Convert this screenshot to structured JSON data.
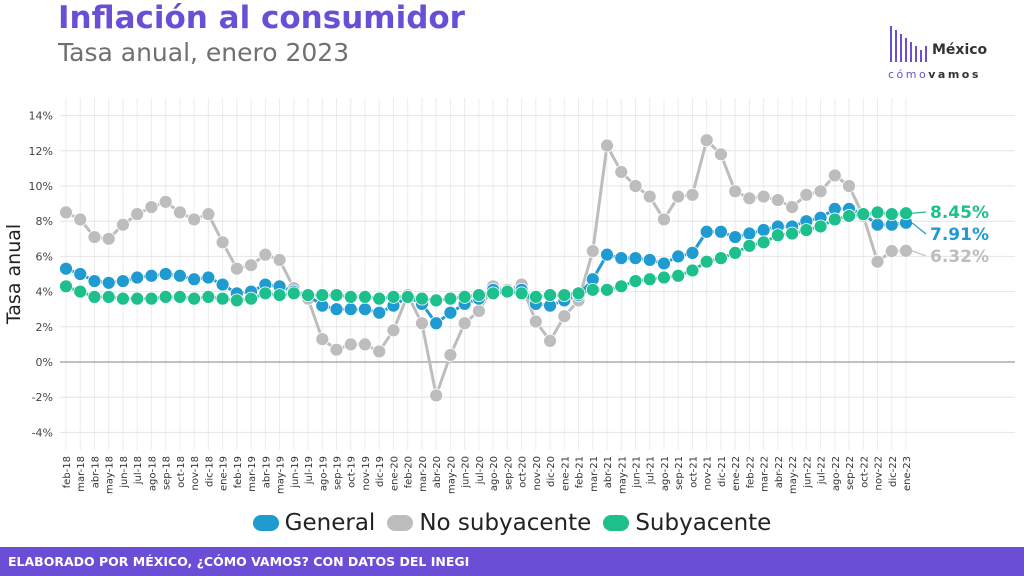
{
  "header": {
    "title": "Inflación al consumidor",
    "subtitle": "Tasa anual, enero 2023"
  },
  "logo": {
    "word": "México",
    "tag_a": "cómo",
    "tag_b": "vamos"
  },
  "footer": {
    "text": "ELABORADO POR MÉXICO, ¿CÓMO VAMOS? CON DATOS DEL INEGI"
  },
  "colors": {
    "brand": "#6a4fd6",
    "general": "#1f9bd1",
    "no_subyacente": "#bdbdbd",
    "subyacente": "#1dbf8c"
  },
  "chart_data": {
    "type": "line",
    "title": "Inflación al consumidor",
    "subtitle": "Tasa anual, enero 2023",
    "xlabel": "",
    "ylabel": "Tasa anual",
    "ylim": [
      -5,
      15
    ],
    "yticks": [
      -4,
      -2,
      0,
      2,
      4,
      6,
      8,
      10,
      12,
      14
    ],
    "ytick_labels": [
      "-4%",
      "-2%",
      "0%",
      "2%",
      "4%",
      "6%",
      "8%",
      "10%",
      "12%",
      "14%"
    ],
    "grid": true,
    "legend_position": "bottom",
    "categories": [
      "feb-18",
      "mar-18",
      "abr-18",
      "may-18",
      "jun-18",
      "jul-18",
      "ago-18",
      "sep-18",
      "oct-18",
      "nov-18",
      "dic-18",
      "ene-19",
      "feb-19",
      "mar-19",
      "abr-19",
      "may-19",
      "jun-19",
      "jul-19",
      "ago-19",
      "sep-19",
      "oct-19",
      "nov-19",
      "dic-19",
      "ene-20",
      "feb-20",
      "mar-20",
      "abr-20",
      "may-20",
      "jun-20",
      "jul-20",
      "ago-20",
      "sep-20",
      "oct-20",
      "nov-20",
      "dic-20",
      "ene-21",
      "feb-21",
      "mar-21",
      "abr-21",
      "may-21",
      "jun-21",
      "jul-21",
      "ago-21",
      "sep-21",
      "oct-21",
      "nov-21",
      "dic-21",
      "ene-22",
      "feb-22",
      "mar-22",
      "abr-22",
      "may-22",
      "jun-22",
      "jul-22",
      "ago-22",
      "sep-22",
      "oct-22",
      "nov-22",
      "dic-22",
      "ene-23"
    ],
    "series": [
      {
        "name": "No subyacente",
        "color": "#bdbdbd",
        "values": [
          8.5,
          8.1,
          7.1,
          7.0,
          7.8,
          8.4,
          8.8,
          9.1,
          8.5,
          8.1,
          8.4,
          6.8,
          5.3,
          5.5,
          6.1,
          5.8,
          4.2,
          3.6,
          1.3,
          0.7,
          1.0,
          1.0,
          0.6,
          1.8,
          3.8,
          2.2,
          -1.9,
          0.4,
          2.2,
          2.9,
          4.3,
          4.1,
          4.4,
          2.3,
          1.2,
          2.6,
          3.5,
          6.3,
          12.3,
          10.8,
          10.0,
          9.4,
          8.1,
          9.4,
          9.5,
          12.6,
          11.8,
          9.7,
          9.3,
          9.4,
          9.2,
          8.8,
          9.5,
          9.7,
          10.6,
          10.0,
          8.3,
          5.7,
          6.3,
          6.32
        ],
        "end_label": "6.32%"
      },
      {
        "name": "General",
        "color": "#1f9bd1",
        "values": [
          5.3,
          5.0,
          4.6,
          4.5,
          4.6,
          4.8,
          4.9,
          5.0,
          4.9,
          4.7,
          4.8,
          4.4,
          3.9,
          4.0,
          4.4,
          4.3,
          4.0,
          3.8,
          3.2,
          3.0,
          3.0,
          3.0,
          2.8,
          3.2,
          3.7,
          3.3,
          2.2,
          2.8,
          3.3,
          3.6,
          4.1,
          4.0,
          4.1,
          3.3,
          3.2,
          3.5,
          3.8,
          4.7,
          6.1,
          5.9,
          5.9,
          5.8,
          5.6,
          6.0,
          6.2,
          7.4,
          7.4,
          7.1,
          7.3,
          7.5,
          7.7,
          7.7,
          8.0,
          8.2,
          8.7,
          8.7,
          8.4,
          7.8,
          7.8,
          7.91
        ],
        "end_label": "7.91%"
      },
      {
        "name": "Subyacente",
        "color": "#1dbf8c",
        "values": [
          4.3,
          4.0,
          3.7,
          3.7,
          3.6,
          3.6,
          3.6,
          3.7,
          3.7,
          3.6,
          3.7,
          3.6,
          3.5,
          3.6,
          3.9,
          3.8,
          3.9,
          3.8,
          3.8,
          3.8,
          3.7,
          3.7,
          3.6,
          3.7,
          3.7,
          3.6,
          3.5,
          3.6,
          3.7,
          3.8,
          3.9,
          4.0,
          3.9,
          3.7,
          3.8,
          3.8,
          3.9,
          4.1,
          4.1,
          4.3,
          4.6,
          4.7,
          4.8,
          4.9,
          5.2,
          5.7,
          5.9,
          6.2,
          6.6,
          6.8,
          7.2,
          7.3,
          7.5,
          7.7,
          8.1,
          8.3,
          8.4,
          8.5,
          8.4,
          8.45
        ],
        "end_label": "8.45%"
      }
    ],
    "legend": [
      "General",
      "No subyacente",
      "Subyacente"
    ]
  }
}
